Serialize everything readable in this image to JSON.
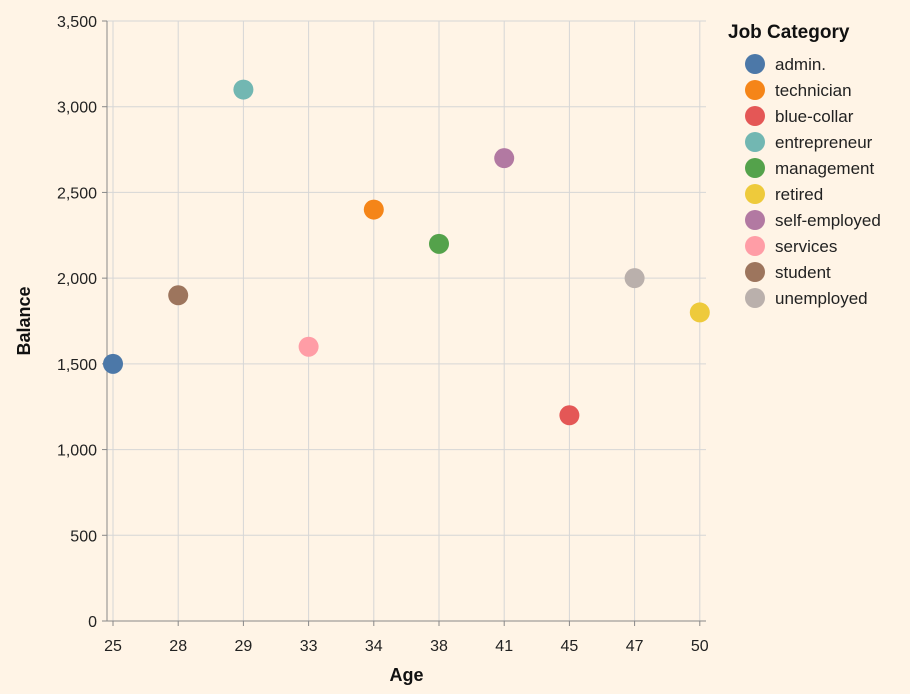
{
  "chart_data": {
    "type": "scatter",
    "title": "",
    "xlabel": "Age",
    "ylabel": "Balance",
    "x_categories": [
      "25",
      "28",
      "29",
      "33",
      "34",
      "38",
      "41",
      "45",
      "47",
      "50"
    ],
    "ylim": [
      0,
      3500
    ],
    "y_ticks": [
      0,
      500,
      1000,
      1500,
      2000,
      2500,
      3000,
      3500
    ],
    "y_tick_labels": [
      "0",
      "500",
      "1,000",
      "1,500",
      "2,000",
      "2,500",
      "3,000",
      "3,500"
    ],
    "grid": true,
    "legend": {
      "title": "Job Category",
      "position": "right",
      "items": [
        {
          "label": "admin.",
          "color": "#4c78a8"
        },
        {
          "label": "technician",
          "color": "#f58518"
        },
        {
          "label": "blue-collar",
          "color": "#e45756"
        },
        {
          "label": "entrepreneur",
          "color": "#72b7b2"
        },
        {
          "label": "management",
          "color": "#54a24b"
        },
        {
          "label": "retired",
          "color": "#eeca3b"
        },
        {
          "label": "self-employed",
          "color": "#b279a2"
        },
        {
          "label": "services",
          "color": "#ff9da6"
        },
        {
          "label": "student",
          "color": "#9d755d"
        },
        {
          "label": "unemployed",
          "color": "#bab0ac"
        }
      ]
    },
    "points": [
      {
        "x": "25",
        "y": 1500,
        "job": "admin."
      },
      {
        "x": "28",
        "y": 1900,
        "job": "student"
      },
      {
        "x": "29",
        "y": 3100,
        "job": "entrepreneur"
      },
      {
        "x": "33",
        "y": 1600,
        "job": "services"
      },
      {
        "x": "34",
        "y": 2400,
        "job": "technician"
      },
      {
        "x": "38",
        "y": 2200,
        "job": "management"
      },
      {
        "x": "41",
        "y": 2700,
        "job": "self-employed"
      },
      {
        "x": "45",
        "y": 1200,
        "job": "blue-collar"
      },
      {
        "x": "47",
        "y": 2000,
        "job": "unemployed"
      },
      {
        "x": "50",
        "y": 1800,
        "job": "retired"
      }
    ]
  }
}
